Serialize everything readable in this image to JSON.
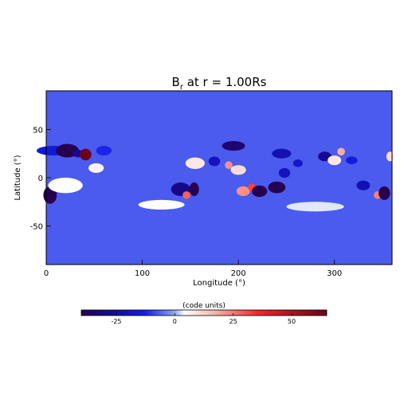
{
  "chart_data": {
    "type": "heatmap",
    "title_main": "B",
    "title_sub": "r",
    "title_rest": " at r = 1.00Rs",
    "xlabel": "Longitude (°)",
    "ylabel": "Latitude (°)",
    "xlim": [
      0,
      360
    ],
    "ylim": [
      -90,
      90
    ],
    "xticks": [
      0,
      100,
      200,
      300
    ],
    "yticks": [
      -50,
      0,
      50
    ],
    "background_value": -7,
    "features": [
      {
        "lon": 8,
        "lat": 28,
        "value": -16,
        "w": 18,
        "h": 5
      },
      {
        "lon": 22,
        "lat": 28,
        "value": -42,
        "w": 12,
        "h": 7
      },
      {
        "lon": 33,
        "lat": 25,
        "value": -28,
        "w": 5,
        "h": 4
      },
      {
        "lon": 41,
        "lat": 24,
        "value": 75,
        "w": 6,
        "h": 6
      },
      {
        "lon": 52,
        "lat": 10,
        "value": 6,
        "w": 8,
        "h": 5
      },
      {
        "lon": 60,
        "lat": 28,
        "value": -12,
        "w": 8,
        "h": 5
      },
      {
        "lon": 4,
        "lat": -18,
        "value": -42,
        "w": 7,
        "h": 9
      },
      {
        "lon": 20,
        "lat": -8,
        "value": 4,
        "w": 18,
        "h": 8
      },
      {
        "lon": 140,
        "lat": -12,
        "value": -30,
        "w": 10,
        "h": 7
      },
      {
        "lon": 146,
        "lat": -18,
        "value": 28,
        "w": 4,
        "h": 4
      },
      {
        "lon": 154,
        "lat": -12,
        "value": -42,
        "w": 5,
        "h": 7
      },
      {
        "lon": 155,
        "lat": 15,
        "value": 8,
        "w": 10,
        "h": 6
      },
      {
        "lon": 175,
        "lat": 17,
        "value": -20,
        "w": 6,
        "h": 5
      },
      {
        "lon": 190,
        "lat": 13,
        "value": 22,
        "w": 4,
        "h": 4
      },
      {
        "lon": 195,
        "lat": 33,
        "value": -34,
        "w": 12,
        "h": 5
      },
      {
        "lon": 200,
        "lat": 8,
        "value": 10,
        "w": 8,
        "h": 5
      },
      {
        "lon": 205,
        "lat": -14,
        "value": 22,
        "w": 7,
        "h": 5
      },
      {
        "lon": 214,
        "lat": -10,
        "value": 32,
        "w": 4,
        "h": 4
      },
      {
        "lon": 222,
        "lat": -14,
        "value": -42,
        "w": 8,
        "h": 6
      },
      {
        "lon": 240,
        "lat": -10,
        "value": -40,
        "w": 9,
        "h": 6
      },
      {
        "lon": 245,
        "lat": 25,
        "value": -22,
        "w": 10,
        "h": 5
      },
      {
        "lon": 248,
        "lat": 5,
        "value": -20,
        "w": 6,
        "h": 5
      },
      {
        "lon": 262,
        "lat": 15,
        "value": -18,
        "w": 5,
        "h": 4
      },
      {
        "lon": 290,
        "lat": 22,
        "value": -28,
        "w": 7,
        "h": 5
      },
      {
        "lon": 300,
        "lat": 18,
        "value": 8,
        "w": 7,
        "h": 5
      },
      {
        "lon": 307,
        "lat": 27,
        "value": 18,
        "w": 4,
        "h": 4
      },
      {
        "lon": 318,
        "lat": 18,
        "value": -14,
        "w": 6,
        "h": 4
      },
      {
        "lon": 330,
        "lat": -8,
        "value": -22,
        "w": 7,
        "h": 5
      },
      {
        "lon": 345,
        "lat": -18,
        "value": 24,
        "w": 4,
        "h": 4
      },
      {
        "lon": 352,
        "lat": -16,
        "value": -40,
        "w": 6,
        "h": 7
      },
      {
        "lon": 358,
        "lat": 22,
        "value": 10,
        "w": 4,
        "h": 5
      },
      {
        "lon": 120,
        "lat": -28,
        "value": 4,
        "w": 24,
        "h": 5
      },
      {
        "lon": 280,
        "lat": -30,
        "value": 3,
        "w": 30,
        "h": 5
      }
    ],
    "colorbar": {
      "title": "(code units)",
      "range": [
        -40,
        65
      ],
      "ticks": [
        -25,
        0,
        25,
        50
      ]
    }
  }
}
